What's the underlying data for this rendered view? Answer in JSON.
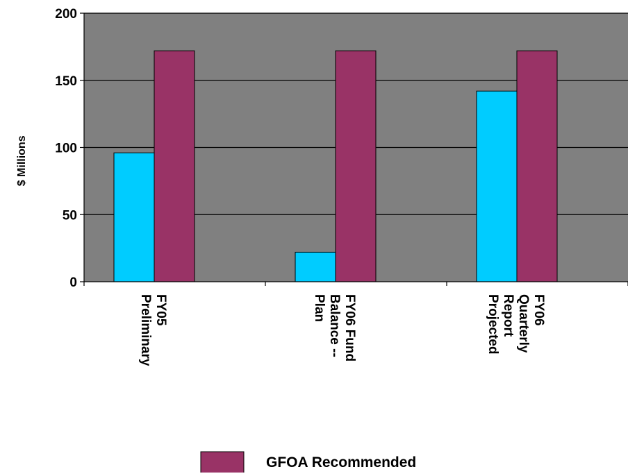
{
  "chart_data": {
    "type": "bar",
    "title": "",
    "ylabel": "$ Millions",
    "xlabel": "",
    "ylim": [
      0,
      200
    ],
    "yticks": [
      0,
      50,
      100,
      150,
      200
    ],
    "grid": true,
    "legend_position": "bottom",
    "categories": [
      [
        "FY05",
        "Preliminary"
      ],
      [
        "FY06 Fund",
        "Balance --",
        "Plan"
      ],
      [
        "FY06",
        "Quarterly",
        "Report",
        "Projected"
      ]
    ],
    "series": [
      {
        "name": "",
        "color": "#00CCFF",
        "values": [
          96,
          22,
          142
        ]
      },
      {
        "name": "GFOA Recommended",
        "color": "#993366",
        "values": [
          172,
          172,
          172
        ]
      }
    ],
    "plot_background": "#808080"
  }
}
